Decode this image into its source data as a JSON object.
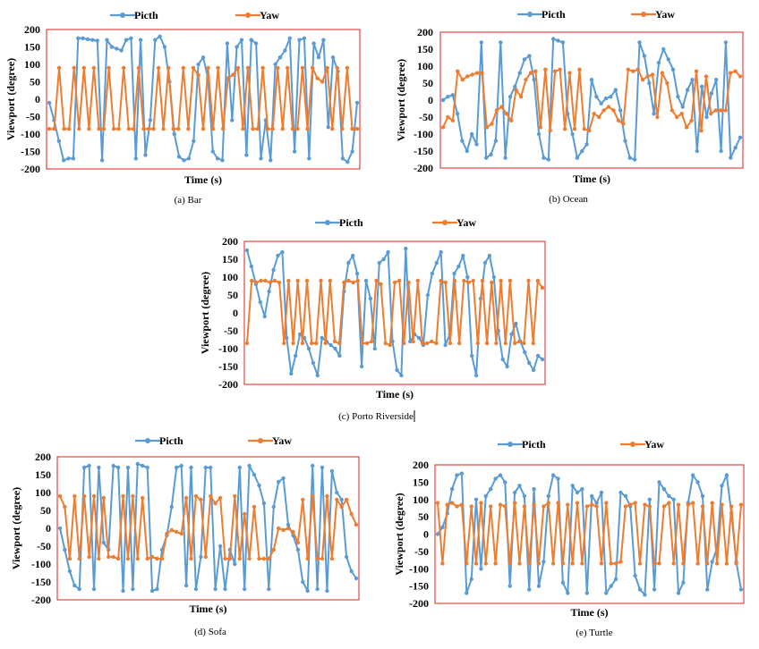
{
  "legend_labels": {
    "pitch": "Picth",
    "yaw": "Yaw"
  },
  "colors": {
    "pitch": "#5b9bd5",
    "yaw": "#ed7d31",
    "frame": "#d9261c"
  },
  "chart_data": [
    {
      "type": "line",
      "caption": "(a) Bar",
      "xlabel": "Time (s)",
      "ylabel": "Viewport (degree)",
      "ylim": [
        -200,
        200
      ],
      "yticks": [
        -200,
        -150,
        -100,
        -50,
        0,
        50,
        100,
        150,
        200
      ],
      "grid": false,
      "legend": "top",
      "series": [
        {
          "name": "Picth",
          "values": [
            -10,
            -60,
            -120,
            -175,
            -170,
            -170,
            175,
            175,
            172,
            170,
            168,
            -175,
            170,
            150,
            145,
            140,
            170,
            175,
            -170,
            170,
            -160,
            -60,
            170,
            180,
            150,
            50,
            -100,
            -165,
            -175,
            -170,
            -120,
            100,
            120,
            60,
            -150,
            -170,
            -175,
            160,
            -60,
            150,
            170,
            -160,
            170,
            160,
            -170,
            -60,
            -175,
            100,
            120,
            140,
            175,
            -150,
            170,
            175,
            -170,
            160,
            120,
            170,
            -80,
            120,
            80,
            -170,
            -180,
            -150,
            -10
          ]
        },
        {
          "name": "Yaw",
          "values": [
            -85,
            -85,
            90,
            -85,
            -85,
            90,
            -85,
            90,
            -85,
            90,
            -85,
            -85,
            90,
            -85,
            -85,
            90,
            -85,
            -85,
            90,
            -85,
            -85,
            -85,
            90,
            -85,
            90,
            -85,
            -85,
            90,
            -85,
            90,
            70,
            -85,
            90,
            -85,
            90,
            -85,
            60,
            70,
            90,
            -85,
            90,
            -85,
            -85,
            90,
            -85,
            -85,
            90,
            -85,
            90,
            -85,
            -85,
            90,
            -85,
            90,
            60,
            50,
            90,
            -85,
            90,
            -85,
            90,
            -85,
            -85
          ]
        }
      ]
    },
    {
      "type": "line",
      "caption": "(b) Ocean",
      "xlabel": "Time (s)",
      "ylabel": "Viewport (degree)",
      "ylim": [
        -200,
        200
      ],
      "yticks": [
        -200,
        -150,
        -100,
        -50,
        0,
        50,
        100,
        150,
        200
      ],
      "grid": false,
      "legend": "top",
      "series": [
        {
          "name": "Picth",
          "values": [
            0,
            10,
            15,
            -40,
            -120,
            -150,
            -100,
            -130,
            170,
            -170,
            -160,
            -120,
            170,
            -170,
            10,
            40,
            80,
            120,
            130,
            60,
            -100,
            -170,
            -175,
            180,
            175,
            170,
            -40,
            -100,
            -170,
            -150,
            -130,
            60,
            10,
            -10,
            5,
            10,
            30,
            -30,
            -120,
            -170,
            -175,
            170,
            130,
            50,
            -40,
            110,
            150,
            120,
            90,
            10,
            -20,
            30,
            60,
            -150,
            40,
            -50,
            20,
            60,
            -150,
            170,
            -170,
            -140,
            -110
          ]
        },
        {
          "name": "Yaw",
          "values": [
            -80,
            -50,
            -60,
            85,
            60,
            70,
            75,
            80,
            80,
            -80,
            -70,
            -30,
            -20,
            -40,
            -60,
            30,
            10,
            60,
            80,
            85,
            -80,
            90,
            -90,
            85,
            90,
            -85,
            80,
            -85,
            90,
            -85,
            -90,
            -40,
            -50,
            -30,
            -20,
            -30,
            -60,
            -70,
            90,
            85,
            90,
            60,
            70,
            75,
            -50,
            80,
            50,
            -30,
            -50,
            -40,
            -80,
            -60,
            85,
            -90,
            70,
            -40,
            -30,
            -30,
            -30,
            80,
            85,
            70
          ]
        }
      ]
    },
    {
      "type": "line",
      "caption": "(c) Porto Riverside",
      "xlabel": "Time (s)",
      "ylabel": "Viewport (degree)",
      "ylim": [
        -200,
        200
      ],
      "yticks": [
        -200,
        -150,
        -100,
        -50,
        0,
        50,
        100,
        150,
        200
      ],
      "grid": false,
      "legend": "top",
      "series": [
        {
          "name": "Picth",
          "values": [
            175,
            130,
            80,
            30,
            -10,
            60,
            120,
            160,
            170,
            -70,
            -170,
            -120,
            -60,
            -70,
            -100,
            -140,
            -175,
            -70,
            -80,
            -90,
            -100,
            -120,
            60,
            140,
            160,
            110,
            -150,
            90,
            40,
            -100,
            140,
            150,
            170,
            -80,
            -160,
            -175,
            180,
            -80,
            -60,
            -70,
            -90,
            50,
            110,
            140,
            170,
            -90,
            -60,
            110,
            130,
            160,
            100,
            -120,
            -175,
            40,
            140,
            160,
            100,
            -50,
            -130,
            -150,
            -60,
            -30,
            -80,
            -110,
            -140,
            -160,
            -120,
            -130
          ]
        },
        {
          "name": "Yaw",
          "values": [
            -85,
            90,
            85,
            90,
            90,
            85,
            90,
            85,
            -85,
            90,
            -85,
            90,
            -85,
            90,
            -85,
            -85,
            90,
            -85,
            90,
            -80,
            -85,
            85,
            90,
            85,
            90,
            -85,
            -85,
            -80,
            90,
            80,
            -85,
            -90,
            85,
            90,
            -85,
            85,
            -80,
            90,
            -85,
            -85,
            -80,
            -85,
            90,
            85,
            -85,
            90,
            -85,
            90,
            85,
            90,
            -85,
            90,
            -85,
            85,
            -85,
            90,
            -85,
            90,
            -85,
            -80,
            -85,
            90,
            -85,
            90,
            70
          ]
        }
      ]
    },
    {
      "type": "line",
      "caption": "(d) Sofa",
      "xlabel": "Time (s)",
      "ylabel": "Viewport (degree)",
      "ylim": [
        -200,
        200
      ],
      "yticks": [
        -200,
        -150,
        -100,
        -50,
        0,
        50,
        100,
        150,
        200
      ],
      "grid": false,
      "legend": "top",
      "series": [
        {
          "name": "Picth",
          "values": [
            0,
            -60,
            -120,
            -160,
            -170,
            170,
            175,
            -170,
            170,
            -40,
            -60,
            175,
            170,
            -175,
            170,
            -170,
            180,
            175,
            170,
            -175,
            -170,
            -60,
            -20,
            60,
            170,
            175,
            -160,
            170,
            -170,
            -80,
            170,
            170,
            -170,
            -50,
            -170,
            -60,
            -100,
            170,
            -170,
            175,
            150,
            120,
            70,
            -170,
            60,
            130,
            140,
            10,
            -20,
            -60,
            -150,
            -175,
            175,
            -170,
            170,
            -175,
            160,
            100,
            80,
            -80,
            -120,
            -140
          ]
        },
        {
          "name": "Yaw",
          "values": [
            90,
            60,
            -85,
            90,
            -85,
            90,
            -80,
            90,
            -85,
            85,
            -80,
            -80,
            -85,
            90,
            -85,
            90,
            -85,
            85,
            -85,
            -80,
            -85,
            -85,
            -15,
            -5,
            -10,
            -15,
            85,
            -85,
            90,
            80,
            -80,
            90,
            70,
            85,
            -85,
            -85,
            90,
            -85,
            40,
            -85,
            60,
            -85,
            -85,
            -85,
            -60,
            0,
            -5,
            0,
            -10,
            -40,
            80,
            -85,
            90,
            -85,
            -85,
            90,
            -85,
            80,
            60,
            80,
            40,
            10
          ]
        }
      ]
    },
    {
      "type": "line",
      "caption": "(e) Turtle",
      "xlabel": "Time (s)",
      "ylabel": "Viewport (degree)",
      "ylim": [
        -200,
        200
      ],
      "yticks": [
        -200,
        -150,
        -100,
        -50,
        0,
        50,
        100,
        150,
        200
      ],
      "grid": false,
      "legend": "top",
      "series": [
        {
          "name": "Picth",
          "values": [
            0,
            20,
            60,
            130,
            170,
            175,
            -170,
            -130,
            100,
            -100,
            110,
            130,
            160,
            170,
            150,
            -150,
            120,
            140,
            110,
            -160,
            130,
            -150,
            -80,
            110,
            170,
            160,
            -140,
            -170,
            140,
            120,
            130,
            -170,
            110,
            90,
            120,
            -170,
            -150,
            -130,
            120,
            110,
            80,
            -120,
            -160,
            -175,
            100,
            -160,
            150,
            130,
            110,
            100,
            -170,
            -140,
            90,
            170,
            150,
            110,
            -160,
            -80,
            -40,
            140,
            170,
            60,
            -80,
            -160
          ]
        },
        {
          "name": "Yaw",
          "values": [
            90,
            -85,
            85,
            90,
            80,
            85,
            -85,
            80,
            -85,
            90,
            -85,
            80,
            -85,
            85,
            80,
            -85,
            90,
            -85,
            80,
            -85,
            85,
            -85,
            80,
            90,
            -85,
            90,
            -85,
            85,
            -85,
            90,
            -85,
            80,
            85,
            80,
            -85,
            90,
            -85,
            -85,
            -80,
            80,
            85,
            90,
            -85,
            85,
            80,
            -85,
            -85,
            80,
            90,
            -85,
            85,
            -85,
            85,
            90,
            -85,
            80,
            -85,
            90,
            -85,
            85,
            -85,
            80,
            -85,
            85
          ]
        }
      ]
    }
  ]
}
